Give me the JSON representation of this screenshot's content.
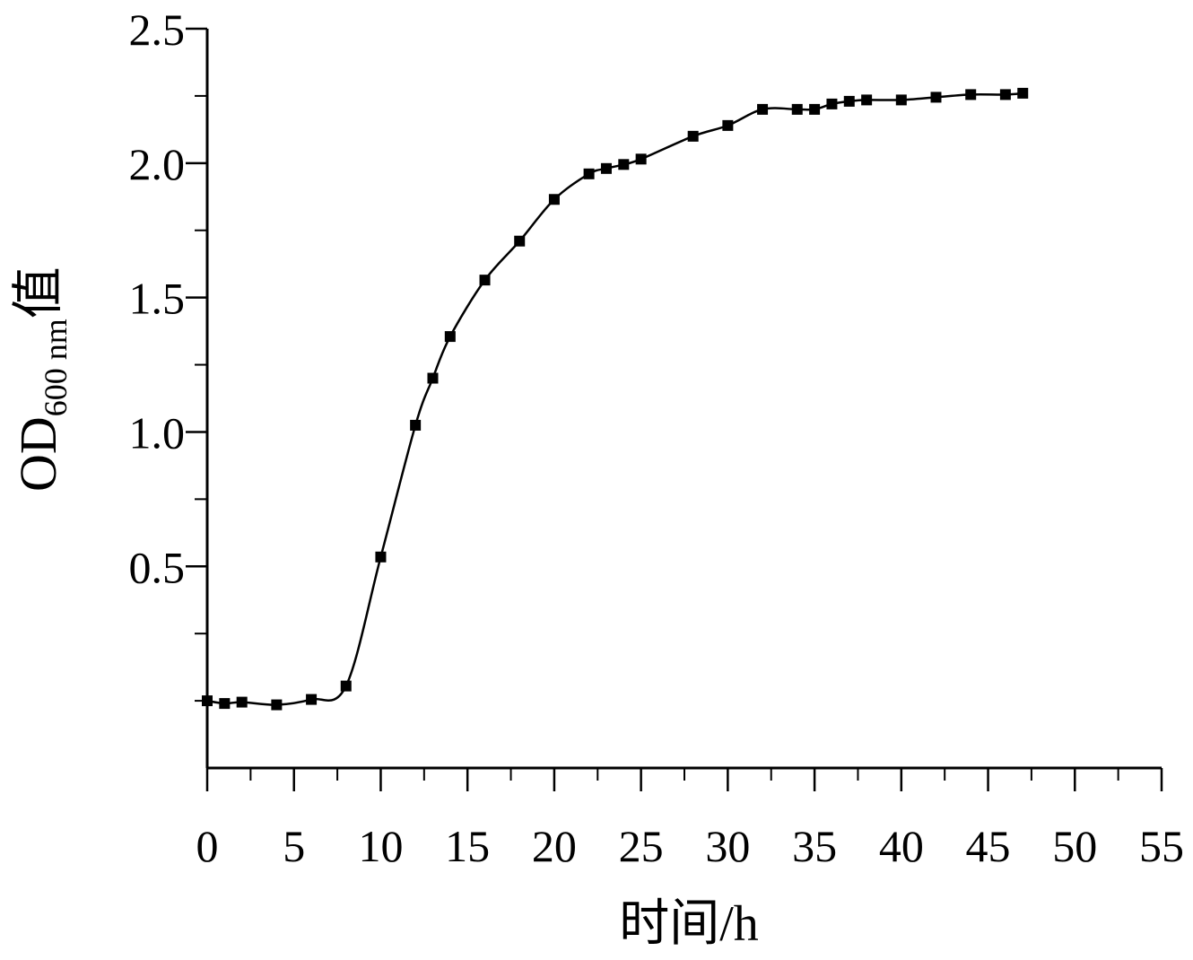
{
  "chart_data": {
    "type": "line",
    "xlabel": "时间/h",
    "ylabel": {
      "main": "OD",
      "subscript": "600 nm",
      "suffix": "值"
    },
    "xlim": [
      0,
      55
    ],
    "ylim": [
      -0.25,
      2.5
    ],
    "x_ticks": [
      0,
      5,
      10,
      15,
      20,
      25,
      30,
      35,
      40,
      45,
      50,
      55
    ],
    "y_ticks": [
      0.5,
      1.0,
      1.5,
      2.0,
      2.5
    ],
    "y_tick_labels": [
      "0.5",
      "1.0",
      "1.5",
      "2.0",
      "2.5"
    ],
    "y_minor_ticks": [
      0.0,
      0.25,
      0.75,
      1.25,
      1.75,
      2.25
    ],
    "legend": "none",
    "grid": false,
    "marker": "square",
    "line_color": "#000000",
    "series": [
      {
        "x": [
          0,
          1,
          2,
          4,
          6,
          8,
          10,
          12,
          13,
          14,
          16,
          18,
          20,
          22,
          23,
          24,
          25,
          28,
          30,
          32,
          34,
          35,
          36,
          37,
          38,
          40,
          42,
          44,
          46,
          47
        ],
        "y": [
          0.0,
          -0.01,
          -0.005,
          -0.015,
          0.005,
          0.055,
          0.535,
          1.025,
          1.2,
          1.355,
          1.565,
          1.71,
          1.865,
          1.96,
          1.98,
          1.995,
          2.015,
          2.1,
          2.14,
          2.2,
          2.2,
          2.2,
          2.22,
          2.23,
          2.235,
          2.235,
          2.245,
          2.255,
          2.255,
          2.26
        ]
      }
    ]
  }
}
